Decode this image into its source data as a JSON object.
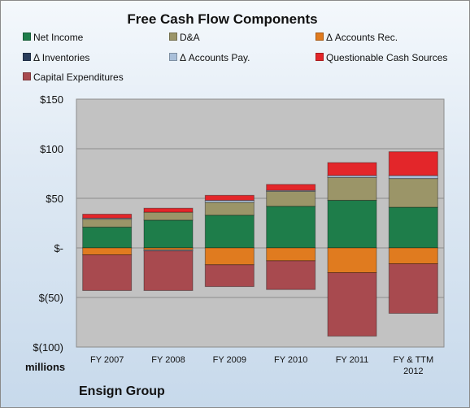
{
  "title": "Free Cash Flow Components",
  "company": "Ensign Group",
  "units_label": "millions",
  "legend": [
    {
      "label": "Net Income",
      "color": "#1e7d4a"
    },
    {
      "label": "D&A",
      "color": "#9b9568"
    },
    {
      "label": "Δ Accounts Rec.",
      "color": "#e07b1f"
    },
    {
      "label": "Δ Inventories",
      "color": "#2a3d5c"
    },
    {
      "label": "Δ Accounts Pay.",
      "color": "#a9bfd9"
    },
    {
      "label": "Questionable Cash Sources",
      "color": "#e3262a"
    },
    {
      "label": "Capital Expenditures",
      "color": "#a84a4f"
    }
  ],
  "chart_data": {
    "type": "bar",
    "stacked": true,
    "title": "Free Cash Flow Components",
    "ylabel": "millions",
    "ylim": [
      -100,
      150
    ],
    "yticks": [
      150,
      100,
      50,
      0,
      -50,
      -100
    ],
    "ytick_labels": [
      "$150",
      "$100",
      "$50",
      "$-",
      "$(50)",
      "$(100)"
    ],
    "categories": [
      "FY 2007",
      "FY 2008",
      "FY 2009",
      "FY 2010",
      "FY 2011",
      "FY & TTM 2012"
    ],
    "series": [
      {
        "name": "Net Income",
        "color": "#1e7d4a",
        "values": [
          21,
          28,
          33,
          42,
          48,
          41
        ]
      },
      {
        "name": "D&A",
        "color": "#9b9568",
        "values": [
          8,
          8,
          13,
          15,
          23,
          29
        ]
      },
      {
        "name": "Δ Accounts Rec.",
        "color": "#e07b1f",
        "values": [
          -7,
          -2,
          -17,
          -13,
          -25,
          -16
        ]
      },
      {
        "name": "Δ Inventories",
        "color": "#2a3d5c",
        "values": [
          0,
          0,
          0,
          0,
          0,
          0
        ]
      },
      {
        "name": "Δ Accounts Pay.",
        "color": "#a9bfd9",
        "values": [
          1,
          -1,
          2,
          1,
          2,
          3
        ]
      },
      {
        "name": "Questionable Cash Sources",
        "color": "#e3262a",
        "values": [
          4,
          4,
          5,
          6,
          13,
          24
        ]
      },
      {
        "name": "Capital Expenditures",
        "color": "#a84a4f",
        "values": [
          -36,
          -40,
          -22,
          -29,
          -64,
          -50
        ]
      }
    ]
  }
}
